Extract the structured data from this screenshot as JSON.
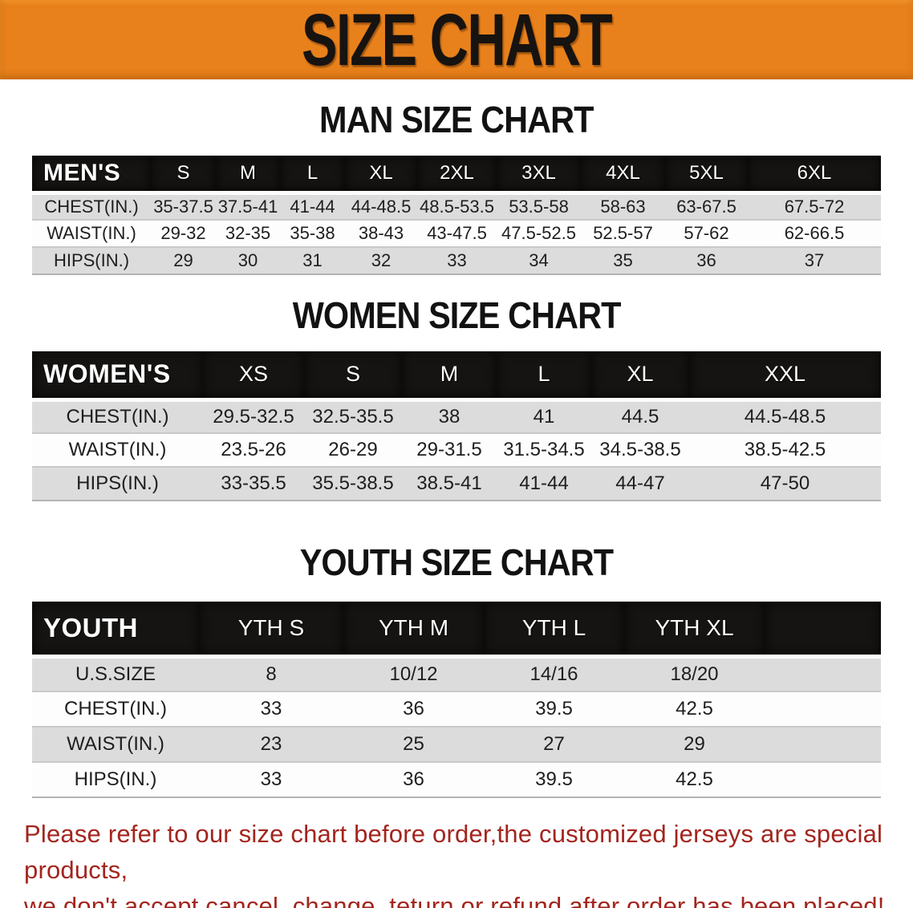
{
  "banner": {
    "title": "SIZE CHART",
    "background_color": "#e8811b",
    "text_color": "#171310"
  },
  "sections": [
    {
      "title": "MAN SIZE CHART",
      "table": {
        "corner_label": "MEN'S",
        "columns": [
          "S",
          "M",
          "L",
          "XL",
          "2XL",
          "3XL",
          "4XL",
          "5XL",
          "6XL"
        ],
        "rows": [
          {
            "label": "CHEST(IN.)",
            "values": [
              "35-37.5",
              "37.5-41",
              "41-44",
              "44-48.5",
              "48.5-53.5",
              "53.5-58",
              "58-63",
              "63-67.5",
              "67.5-72"
            ]
          },
          {
            "label": "WAIST(IN.)",
            "values": [
              "29-32",
              "32-35",
              "35-38",
              "38-43",
              "43-47.5",
              "47.5-52.5",
              "52.5-57",
              "57-62",
              "62-66.5"
            ]
          },
          {
            "label": "HIPS(IN.)",
            "values": [
              "29",
              "30",
              "31",
              "32",
              "33",
              "34",
              "35",
              "36",
              "37"
            ]
          }
        ]
      }
    },
    {
      "title": "WOMEN SIZE CHART",
      "table": {
        "corner_label": "WOMEN'S",
        "columns": [
          "XS",
          "S",
          "M",
          "L",
          "XL",
          "XXL"
        ],
        "rows": [
          {
            "label": "CHEST(IN.)",
            "values": [
              "29.5-32.5",
              "32.5-35.5",
              "38",
              "41",
              "44.5",
              "44.5-48.5"
            ]
          },
          {
            "label": "WAIST(IN.)",
            "values": [
              "23.5-26",
              "26-29",
              "29-31.5",
              "31.5-34.5",
              "34.5-38.5",
              "38.5-42.5"
            ]
          },
          {
            "label": "HIPS(IN.)",
            "values": [
              "33-35.5",
              "35.5-38.5",
              "38.5-41",
              "41-44",
              "44-47",
              "47-50"
            ]
          }
        ]
      }
    },
    {
      "title": "YOUTH SIZE CHART",
      "table": {
        "corner_label": "YOUTH",
        "columns": [
          "YTH S",
          "YTH M",
          "YTH L",
          "YTH XL"
        ],
        "rows": [
          {
            "label": "U.S.SIZE",
            "values": [
              "8",
              "10/12",
              "14/16",
              "18/20"
            ]
          },
          {
            "label": "CHEST(IN.)",
            "values": [
              "33",
              "36",
              "39.5",
              "42.5"
            ]
          },
          {
            "label": "WAIST(IN.)",
            "values": [
              "23",
              "25",
              "27",
              "29"
            ]
          },
          {
            "label": "HIPS(IN.)",
            "values": [
              "33",
              "36",
              "39.5",
              "42.5"
            ]
          }
        ]
      }
    }
  ],
  "footer": {
    "text_color": "#a3251e",
    "lines": [
      "Please refer to our size chart before order,the customized jerseys are special products,",
      "we don't accept cancel, change, teturn or refund after order has been placed!"
    ]
  }
}
